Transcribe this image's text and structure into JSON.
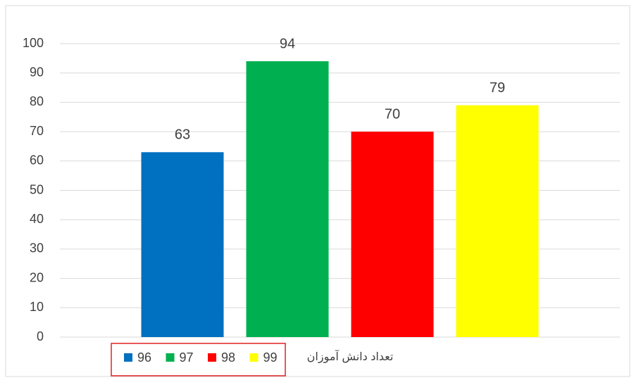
{
  "chart_data": {
    "type": "bar",
    "categories": [
      "تعداد دانش آموزان"
    ],
    "series": [
      {
        "name": "96",
        "color": "#0070c0",
        "values": [
          63
        ]
      },
      {
        "name": "97",
        "color": "#00b050",
        "values": [
          94
        ]
      },
      {
        "name": "98",
        "color": "#ff0000",
        "values": [
          70
        ]
      },
      {
        "name": "99",
        "color": "#ffff00",
        "values": [
          79
        ]
      }
    ],
    "ylim": [
      0,
      100
    ],
    "yticks": [
      0,
      10,
      20,
      30,
      40,
      50,
      60,
      70,
      80,
      90,
      100
    ],
    "grid": true,
    "legend": "bottom"
  }
}
